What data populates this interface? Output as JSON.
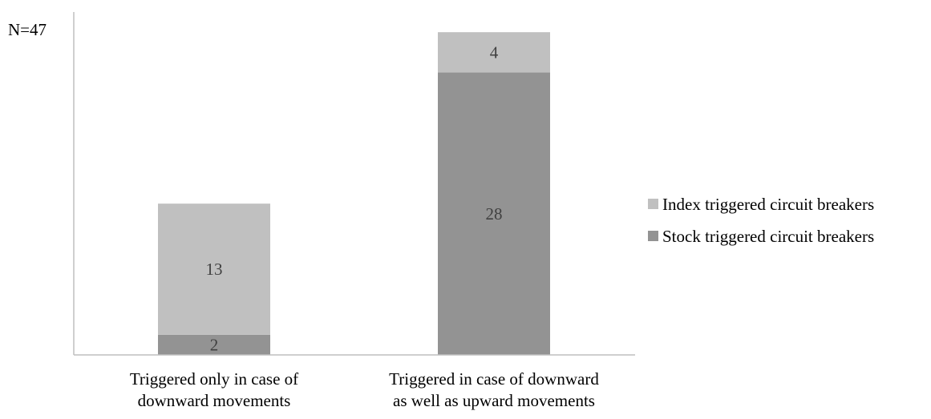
{
  "chart_data": {
    "type": "bar",
    "stacked": true,
    "y_annotation": "N=47",
    "categories": [
      [
        "Triggered only in case of",
        "downward movements"
      ],
      [
        "Triggered in case of downward",
        "as well as upward movements"
      ]
    ],
    "series": [
      {
        "name": "Stock triggered circuit breakers",
        "values": [
          2,
          28
        ],
        "color": "#939393"
      },
      {
        "name": "Index triggered circuit breakers",
        "values": [
          13,
          4
        ],
        "color": "#c0c0c0"
      }
    ],
    "legend_order": [
      1,
      0
    ],
    "ylim": [
      0,
      34
    ],
    "legend_position": "right",
    "grid": false
  },
  "colors": {
    "axis": "#bfbfbf",
    "label_text": "#404040",
    "text": "#000000"
  }
}
